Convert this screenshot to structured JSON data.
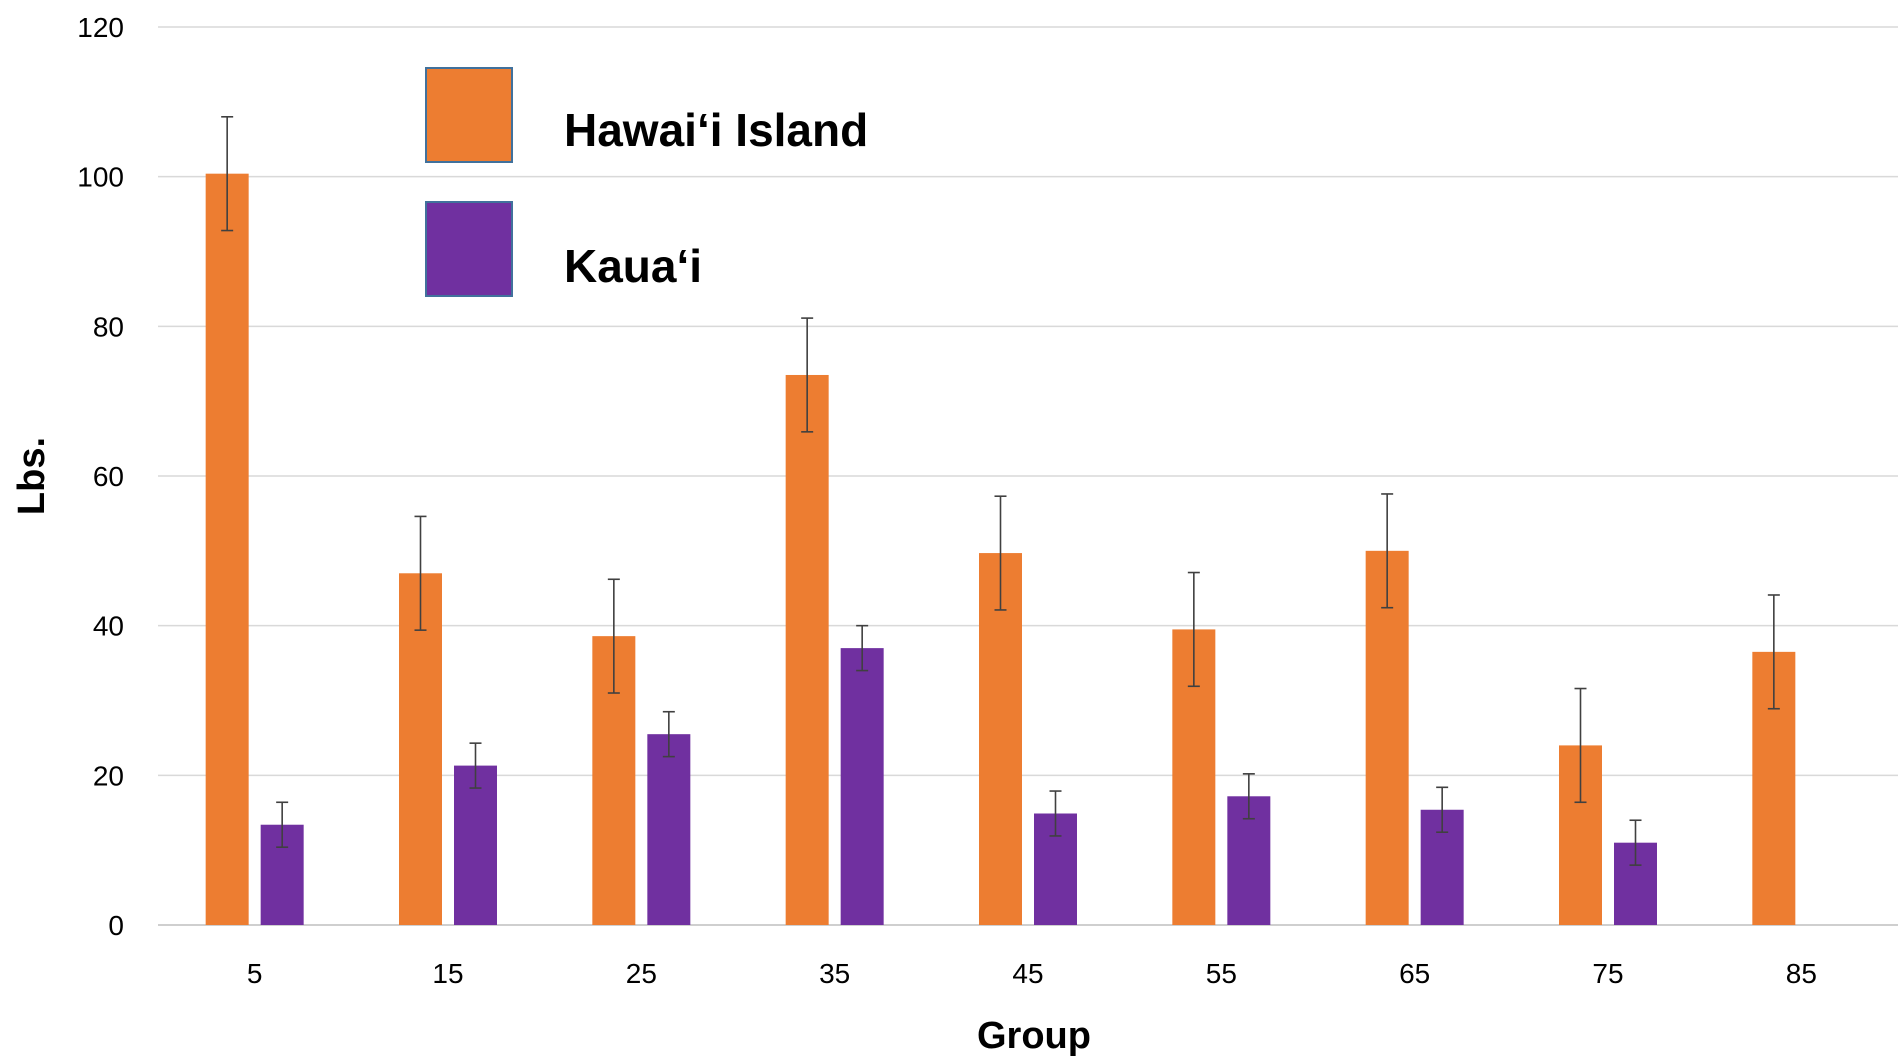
{
  "chart_data": {
    "type": "bar",
    "categories": [
      "5",
      "15",
      "25",
      "35",
      "45",
      "55",
      "65",
      "75",
      "85"
    ],
    "series": [
      {
        "name": "Hawai‘i Island",
        "color": "#ED7D31",
        "values": [
          100.4,
          47.0,
          38.6,
          73.5,
          49.7,
          39.5,
          50.0,
          24.0,
          36.5
        ],
        "errors": [
          7.6,
          7.6,
          7.6,
          7.6,
          7.6,
          7.6,
          7.6,
          7.6,
          7.6
        ]
      },
      {
        "name": "Kaua‘i",
        "color": "#7030A0",
        "values": [
          13.4,
          21.3,
          25.5,
          37.0,
          14.9,
          17.2,
          15.4,
          11.0,
          null
        ],
        "errors": [
          3.0,
          3.0,
          3.0,
          3.0,
          3.0,
          3.0,
          3.0,
          3.0,
          null
        ]
      }
    ],
    "xlabel": "Group",
    "ylabel": "Lbs.",
    "ylim": [
      0,
      120
    ],
    "yticks": [
      "0",
      "20",
      "40",
      "60",
      "80",
      "100",
      "120"
    ],
    "grid": true,
    "legend_position": "top-left inside"
  }
}
